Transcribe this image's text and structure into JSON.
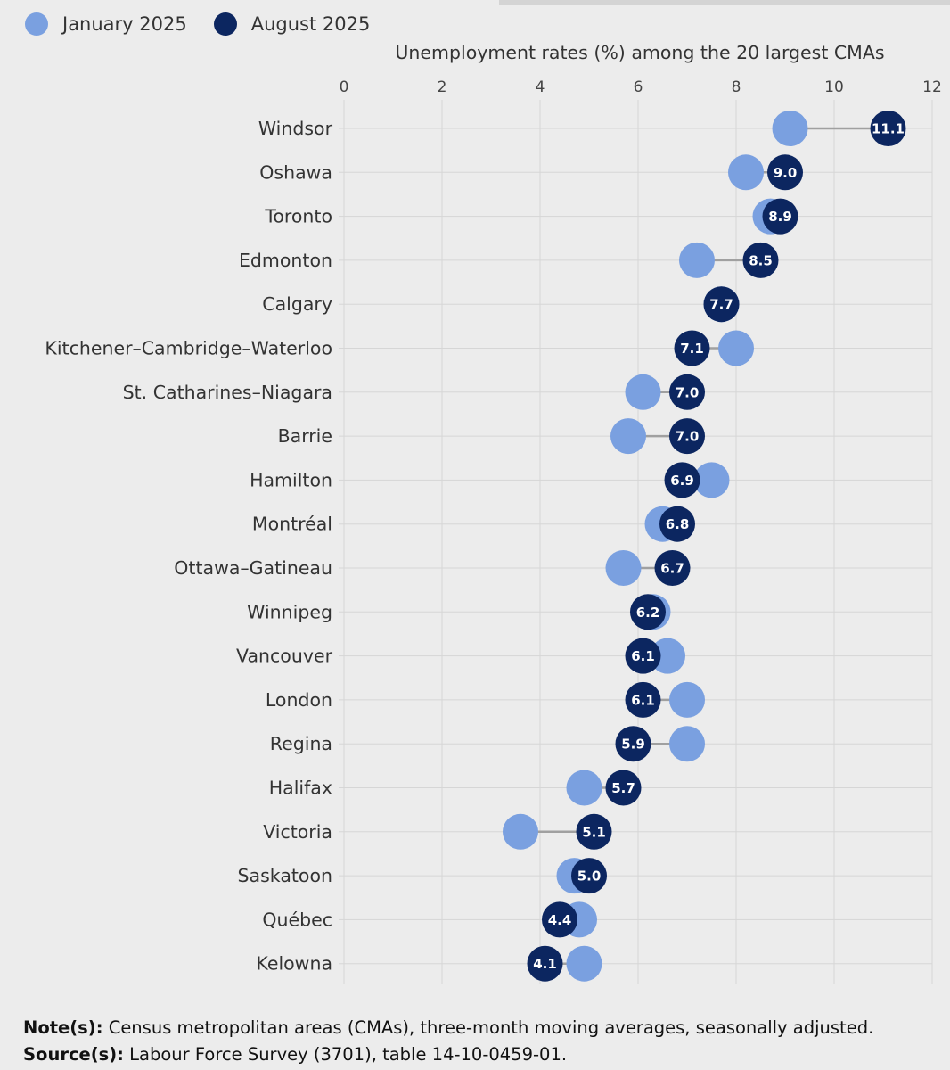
{
  "legend": {
    "series_a": "January 2025",
    "series_b": "August 2025"
  },
  "colors": {
    "january": "#7aa0e0",
    "august": "#0c2660",
    "connector": "#a0a0a0",
    "grid": "#d6d6d6",
    "label_text": "#ffffff"
  },
  "chart_data": {
    "type": "dot-plot",
    "title": "Unemployment rates (%) among the 20 largest CMAs",
    "xlim": [
      0,
      12
    ],
    "xticks": [
      "0",
      "2",
      "4",
      "6",
      "8",
      "10",
      "12"
    ],
    "series": [
      {
        "name": "January 2025",
        "key": "january"
      },
      {
        "name": "August 2025",
        "key": "august"
      }
    ],
    "categories": [
      "Windsor",
      "Oshawa",
      "Toronto",
      "Edmonton",
      "Calgary",
      "Kitchener–Cambridge–Waterloo",
      "St. Catharines–Niagara",
      "Barrie",
      "Hamilton",
      "Montréal",
      "Ottawa–Gatineau",
      "Winnipeg",
      "Vancouver",
      "London",
      "Regina",
      "Halifax",
      "Victoria",
      "Saskatoon",
      "Québec",
      "Kelowna"
    ],
    "january": [
      9.1,
      8.2,
      8.7,
      7.2,
      7.7,
      8.0,
      6.1,
      5.8,
      7.5,
      6.5,
      5.7,
      6.3,
      6.6,
      7.0,
      7.0,
      4.9,
      3.6,
      4.7,
      4.8,
      4.9
    ],
    "august": [
      11.1,
      9.0,
      8.9,
      8.5,
      7.7,
      7.1,
      7.0,
      7.0,
      6.9,
      6.8,
      6.7,
      6.2,
      6.1,
      6.1,
      5.9,
      5.7,
      5.1,
      5.0,
      4.4,
      4.1
    ],
    "august_labels": [
      "11.1",
      "9.0",
      "8.9",
      "8.5",
      "7.7",
      "7.1",
      "7.0",
      "7.0",
      "6.9",
      "6.8",
      "6.7",
      "6.2",
      "6.1",
      "6.1",
      "5.9",
      "5.7",
      "5.1",
      "5.0",
      "4.4",
      "4.1"
    ]
  },
  "notes": {
    "note_label": "Note(s):",
    "note_text": " Census metropolitan areas (CMAs), three-month moving averages, seasonally adjusted.",
    "source_label": "Source(s):",
    "source_text": " Labour Force Survey (3701), table 14-10-0459-01."
  }
}
